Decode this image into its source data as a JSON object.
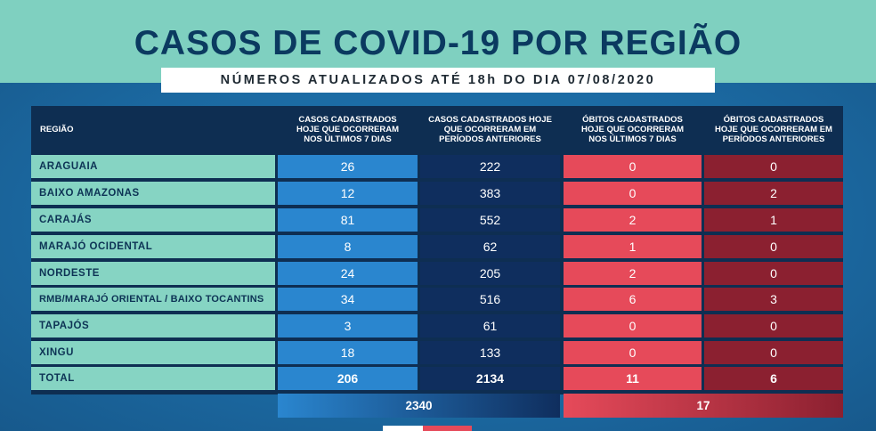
{
  "title": "CASOS DE COVID-19 POR REGIÃO",
  "subtitle": "NÚMEROS ATUALIZADOS ATÉ 18h DO DIA 07/08/2020",
  "headers": {
    "region": "REGIÃO",
    "col1": [
      "CASOS CADASTRADOS",
      "HOJE QUE OCORRERAM",
      "NOS ÚLTIMOS 7 DIAS"
    ],
    "col2": [
      "CASOS CADASTRADOS HOJE",
      "QUE OCORRERAM EM",
      "PERÍODOS ANTERIORES"
    ],
    "col3": [
      "ÓBITOS CADASTRADOS",
      "HOJE QUE OCORRERAM",
      "NOS ÚLTIMOS 7 DIAS"
    ],
    "col4": [
      "ÓBITOS CADASTRADOS",
      "HOJE QUE OCORRERAM EM",
      "PERÍODOS ANTERIORES"
    ]
  },
  "rows": [
    {
      "region": "ARAGUAIA",
      "c1": "26",
      "c2": "222",
      "c3": "0",
      "c4": "0"
    },
    {
      "region": "BAIXO AMAZONAS",
      "c1": "12",
      "c2": "383",
      "c3": "0",
      "c4": "2"
    },
    {
      "region": "CARAJÁS",
      "c1": "81",
      "c2": "552",
      "c3": "2",
      "c4": "1"
    },
    {
      "region": "MARAJÓ OCIDENTAL",
      "c1": "8",
      "c2": "62",
      "c3": "1",
      "c4": "0"
    },
    {
      "region": "NORDESTE",
      "c1": "24",
      "c2": "205",
      "c3": "2",
      "c4": "0"
    },
    {
      "region": "RMB/MARAJÓ ORIENTAL / BAIXO TOCANTINS",
      "c1": "34",
      "c2": "516",
      "c3": "6",
      "c4": "3"
    },
    {
      "region": "TAPAJÓS",
      "c1": "3",
      "c2": "61",
      "c3": "0",
      "c4": "0"
    },
    {
      "region": "XINGU",
      "c1": "18",
      "c2": "133",
      "c3": "0",
      "c4": "0"
    }
  ],
  "total": {
    "region": "TOTAL",
    "c1": "206",
    "c2": "2134",
    "c3": "11",
    "c4": "6"
  },
  "sum_cases": "2340",
  "sum_deaths": "17",
  "colors": {
    "top_band": "#7fd0c0",
    "title": "#0b3a60",
    "region_cell": "#86d4c3",
    "cases_7d": "#2a86cf",
    "cases_prev": "#0f2e5e",
    "deaths_7d": "#e64a5a",
    "deaths_prev": "#8b2030"
  }
}
